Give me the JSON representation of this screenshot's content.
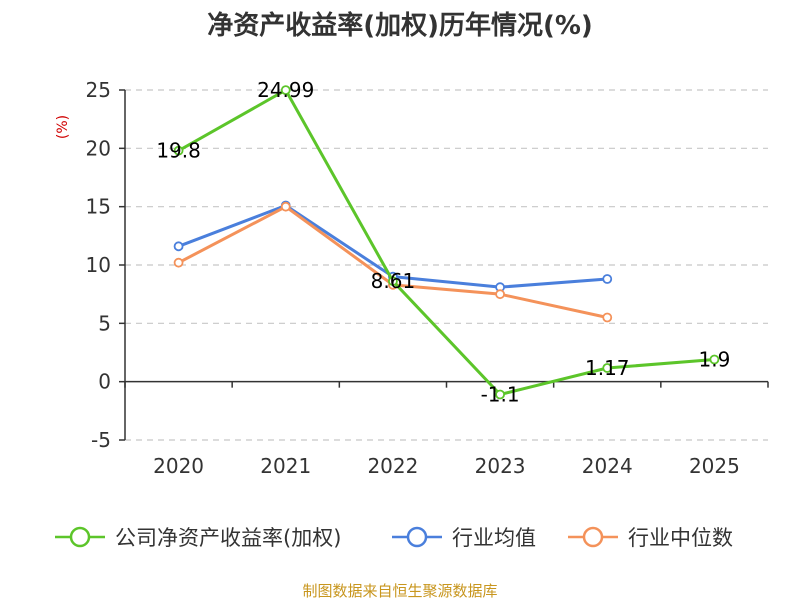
{
  "chart_data": {
    "type": "line",
    "title": "净资产收益率(加权)历年情况(%)",
    "ylabel": "(%)",
    "xlabel": "",
    "categories": [
      "2020",
      "2021",
      "2022",
      "2023",
      "2024",
      "2025"
    ],
    "ylim": [
      -5,
      25
    ],
    "yticks": [
      -5,
      0,
      5,
      10,
      15,
      20,
      25
    ],
    "grid": true,
    "legend_position": "bottom",
    "series": [
      {
        "name": "公司净资产收益率(加权)",
        "color": "#5cc52a",
        "values": [
          19.8,
          24.99,
          8.61,
          -1.1,
          1.17,
          1.9
        ],
        "labels": [
          "19.8",
          "24.99",
          "8.61",
          "-1.1",
          "1.17",
          "1.9"
        ]
      },
      {
        "name": "行业均值",
        "color": "#4a7fdc",
        "values": [
          11.6,
          15.1,
          9.0,
          8.1,
          8.8,
          null
        ]
      },
      {
        "name": "行业中位数",
        "color": "#f4925a",
        "values": [
          10.2,
          15.0,
          8.3,
          7.5,
          5.5,
          null
        ]
      }
    ],
    "source": "制图数据来自恒生聚源数据库"
  }
}
